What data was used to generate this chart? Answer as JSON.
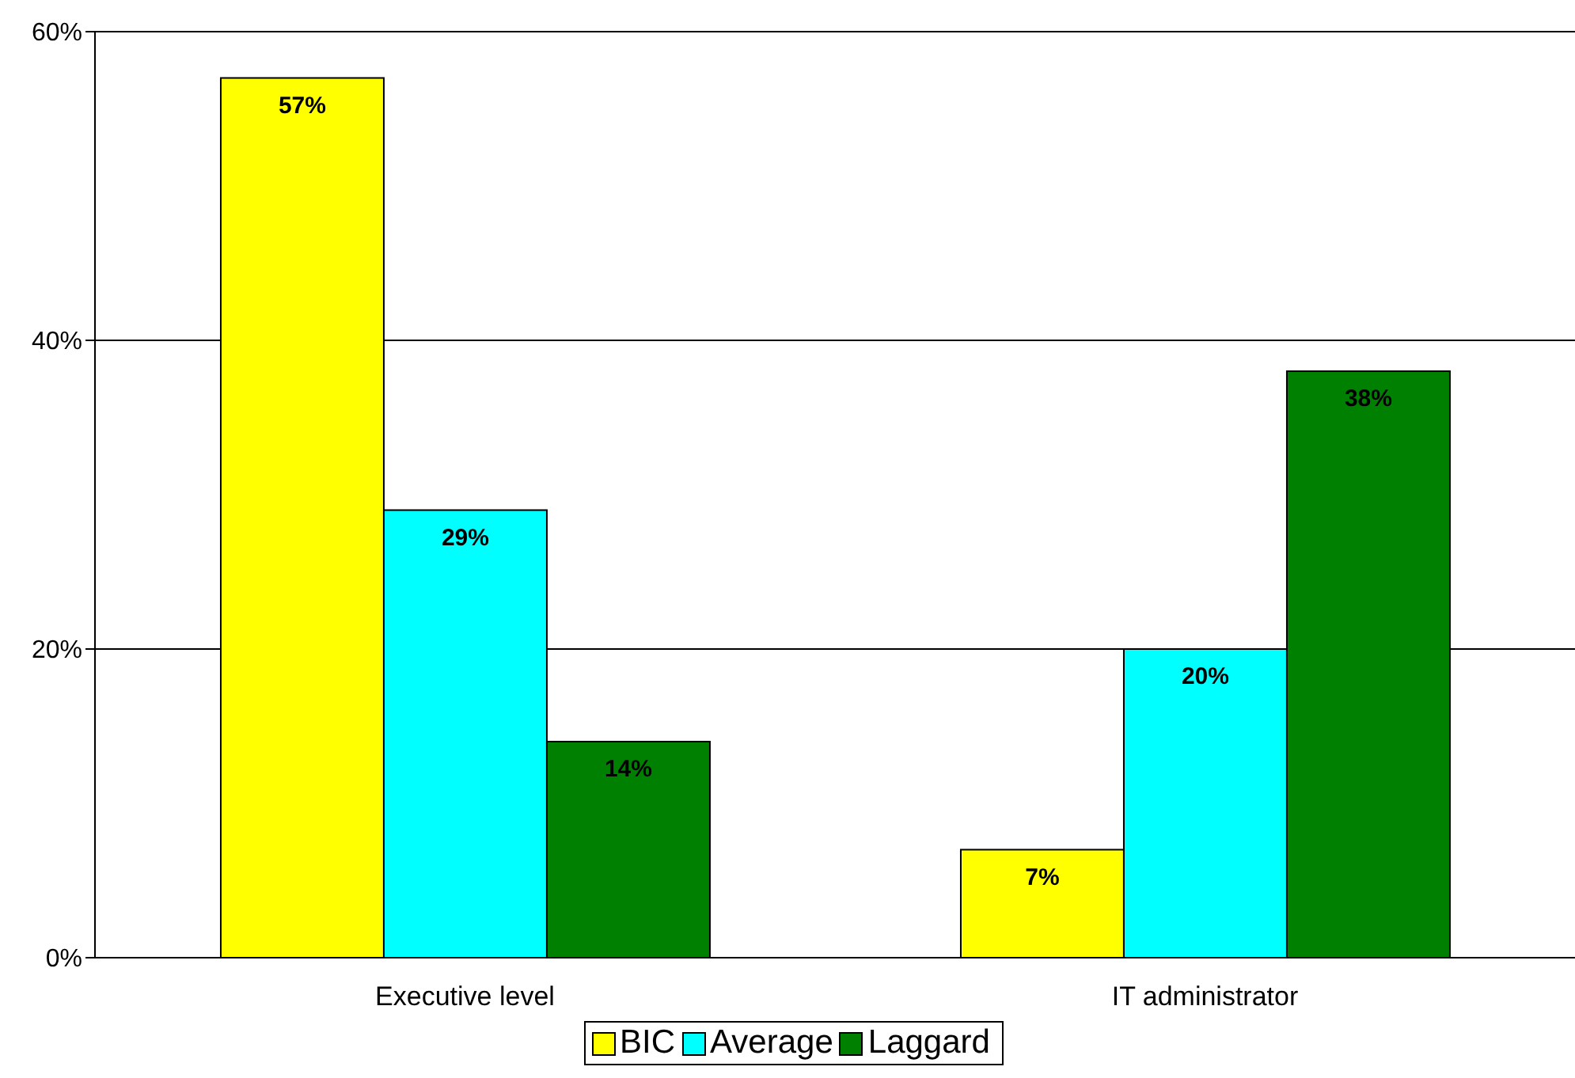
{
  "chart_data": {
    "type": "bar",
    "categories": [
      "Executive level",
      "IT administrator"
    ],
    "series": [
      {
        "name": "BIC",
        "color": "#ffff00",
        "values": [
          57,
          7
        ],
        "value_labels": [
          "57%",
          "7%"
        ]
      },
      {
        "name": "Average",
        "color": "#00ffff",
        "values": [
          29,
          20
        ],
        "value_labels": [
          "29%",
          "20%"
        ]
      },
      {
        "name": "Laggard",
        "color": "#008000",
        "values": [
          14,
          38
        ],
        "value_labels": [
          "14%",
          "38%"
        ]
      }
    ],
    "ylim": [
      0,
      60
    ],
    "yticks": [
      {
        "value": 0,
        "label": "0%"
      },
      {
        "value": 20,
        "label": "20%"
      },
      {
        "value": 40,
        "label": "40%"
      },
      {
        "value": 60,
        "label": "60%"
      }
    ],
    "grid": "y",
    "legend": "bottom"
  }
}
